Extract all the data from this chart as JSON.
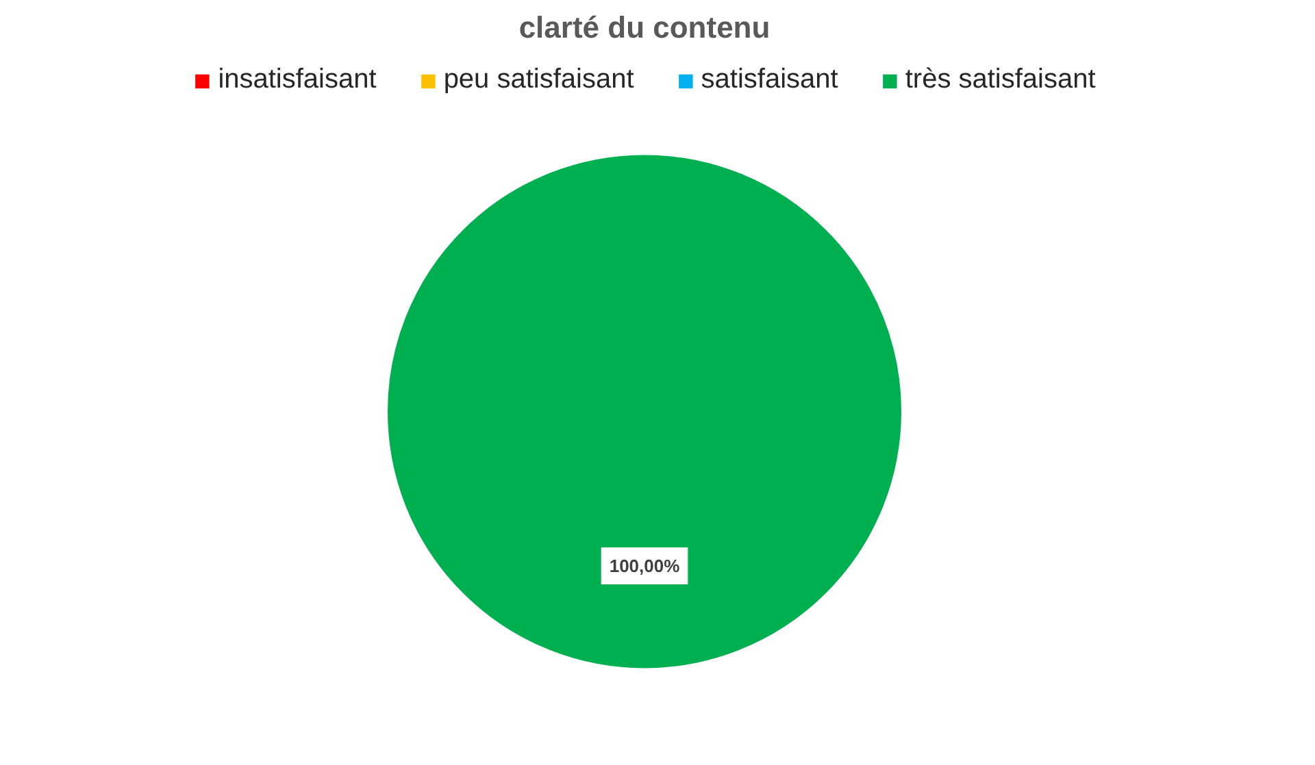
{
  "chart_data": {
    "type": "pie",
    "title": "clarté du contenu",
    "categories": [
      "insatisfaisant",
      "peu satisfaisant",
      "satisfaisant",
      "très satisfaisant"
    ],
    "values": [
      0,
      0,
      0,
      100
    ],
    "colors": [
      "#ff0000",
      "#ffc000",
      "#00b0f0",
      "#00b050"
    ],
    "value_labels": [
      null,
      null,
      null,
      "100,00%"
    ],
    "legend": "top"
  }
}
